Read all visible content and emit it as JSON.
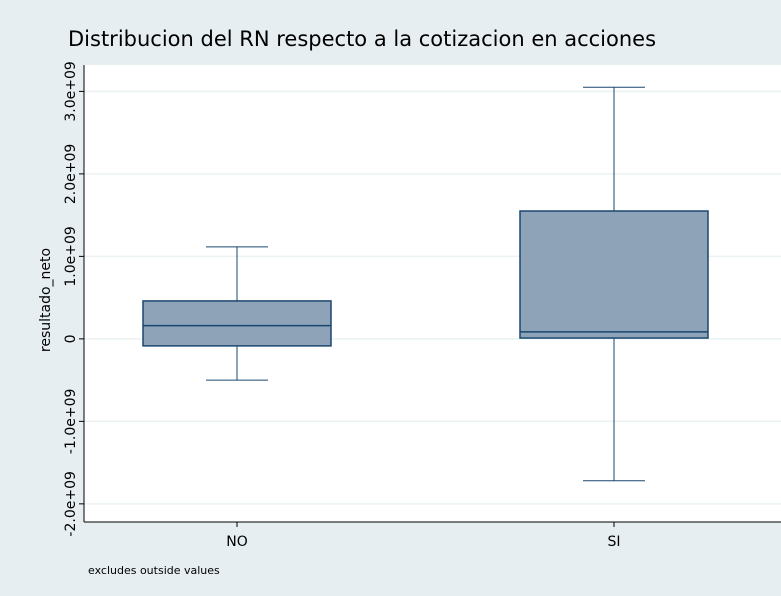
{
  "chart_data": {
    "type": "box",
    "title": "Distribucion del RN respecto a la cotizacion en acciones",
    "y_label": "resultado_neto",
    "note": "excludes outside values",
    "categories": [
      "NO",
      "SI"
    ],
    "series": [
      {
        "name": "resultado_neto",
        "color": "#8ea3b7",
        "whisker_low": [
          -500000000,
          -1720000000
        ],
        "q1": [
          -85000000,
          10000000
        ],
        "median": [
          160000000,
          85000000
        ],
        "q3": [
          460000000,
          1550000000
        ],
        "whisker_high": [
          1115000000,
          3050000000
        ]
      }
    ],
    "ylim": [
      -2220000000,
      3320000000
    ],
    "yticks": [
      {
        "value": -2000000000,
        "label": "-2.0e+09"
      },
      {
        "value": -1000000000,
        "label": "-1.0e+09"
      },
      0,
      {
        "value": 1000000000,
        "label": "1.0e+09"
      },
      {
        "value": 2000000000,
        "label": "2.0e+09"
      },
      {
        "value": 3000000000,
        "label": "3.0e+09"
      }
    ],
    "grid": true
  }
}
